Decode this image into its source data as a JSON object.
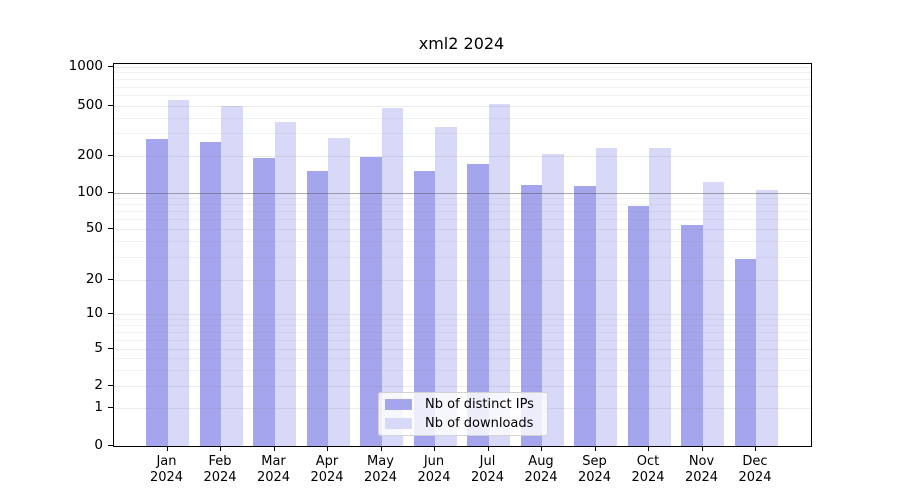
{
  "title": "xml2 2024",
  "legend": {
    "items": [
      {
        "label": "Nb of distinct IPs",
        "color": "#a5a5ee"
      },
      {
        "label": "Nb of downloads",
        "color": "#d8d8f8"
      }
    ]
  },
  "y_axis": {
    "tick_labels": [
      "1000",
      "500",
      "200",
      "100",
      "50",
      "20",
      "10",
      "5",
      "2",
      "1",
      "0"
    ]
  },
  "x_axis": {
    "months": [
      {
        "month": "Jan",
        "year": "2024"
      },
      {
        "month": "Feb",
        "year": "2024"
      },
      {
        "month": "Mar",
        "year": "2024"
      },
      {
        "month": "Apr",
        "year": "2024"
      },
      {
        "month": "May",
        "year": "2024"
      },
      {
        "month": "Jun",
        "year": "2024"
      },
      {
        "month": "Jul",
        "year": "2024"
      },
      {
        "month": "Aug",
        "year": "2024"
      },
      {
        "month": "Sep",
        "year": "2024"
      },
      {
        "month": "Oct",
        "year": "2024"
      },
      {
        "month": "Nov",
        "year": "2024"
      },
      {
        "month": "Dec",
        "year": "2024"
      }
    ]
  },
  "chart_data": {
    "type": "bar",
    "title": "xml2 2024",
    "categories": [
      "Jan 2024",
      "Feb 2024",
      "Mar 2024",
      "Apr 2024",
      "May 2024",
      "Jun 2024",
      "Jul 2024",
      "Aug 2024",
      "Sep 2024",
      "Oct 2024",
      "Nov 2024",
      "Dec 2024"
    ],
    "series": [
      {
        "name": "Nb of distinct IPs",
        "color": "#a5a5ee",
        "values": [
          270,
          255,
          190,
          150,
          196,
          151,
          170,
          116,
          113,
          78,
          54,
          29
        ]
      },
      {
        "name": "Nb of downloads",
        "color": "#d8d8f8",
        "values": [
          548,
          492,
          371,
          276,
          477,
          340,
          514,
          206,
          230,
          229,
          121,
          106
        ]
      }
    ],
    "xlabel": "",
    "ylabel": "",
    "yscale": "log-like (asinh), 0 at baseline",
    "y_ticks": [
      0,
      1,
      2,
      5,
      10,
      20,
      50,
      100,
      200,
      500,
      1000
    ],
    "ylim": [
      0,
      1000
    ],
    "grid": true,
    "grid_emphasis_at": 100,
    "legend_position": "lower center"
  },
  "colors": {
    "ips_bar": "#a5a5ee",
    "downloads_bar": "#d8d8f8",
    "grid": "#e4e4e4",
    "grid_minor": "#efefef",
    "grid_emphasis": "#a6a6a6",
    "spine": "#000000",
    "background": "#ffffff"
  }
}
